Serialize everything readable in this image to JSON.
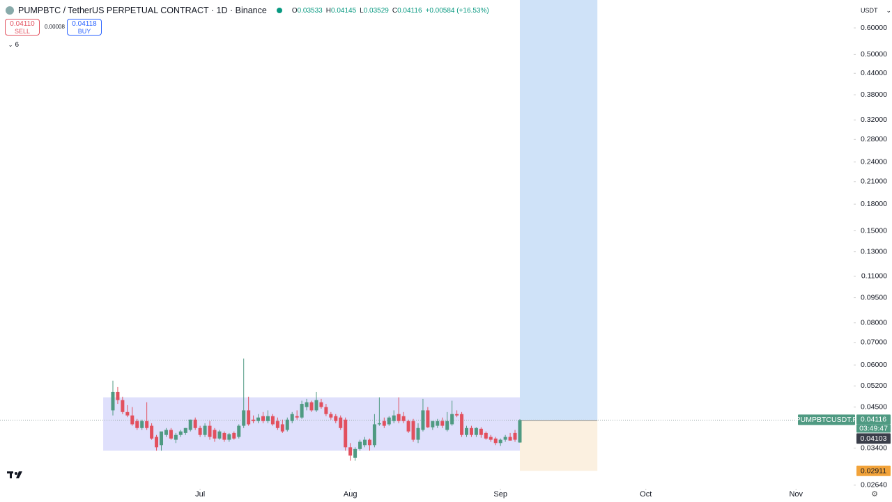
{
  "header": {
    "symbol": "PUMPBTC / TetherUS PERPETUAL CONTRACT · 1D · Binance",
    "ohlc": [
      {
        "key": "O",
        "value": "0.03533"
      },
      {
        "key": "H",
        "value": "0.04145"
      },
      {
        "key": "L",
        "value": "0.03529"
      },
      {
        "key": "C",
        "value": "0.04116"
      }
    ],
    "change": "+0.00584 (+16.53%)"
  },
  "trade": {
    "sell_price": "0.04110",
    "sell": "SELL",
    "spread": "0.00008",
    "buy_price": "0.04118",
    "buy": "BUY"
  },
  "indicators_count": 6,
  "currency": "USDT",
  "price_labels": {
    "symbol": "PUMPBTCUSDT.P",
    "price": "0.04116",
    "countdown": "03:49:47",
    "bid": "0.04103"
  },
  "chart_data": {
    "type": "candlestick",
    "log_scale": true,
    "up_color": "#4f9a82",
    "down_color": "#e2505e",
    "open": [
      0.044,
      0.0499,
      0.0472,
      0.0435,
      0.0425,
      0.0409,
      0.039,
      0.0409,
      0.0396,
      0.0367,
      0.0347,
      0.0372,
      0.0385,
      0.036,
      0.0372,
      0.0377,
      0.0385,
      0.0413,
      0.039,
      0.0372,
      0.0396,
      0.0385,
      0.0363,
      0.0377,
      0.036,
      0.0377,
      0.0367,
      0.0396,
      0.044,
      0.0413,
      0.0409,
      0.0423,
      0.0409,
      0.0423,
      0.0409,
      0.04,
      0.0385,
      0.0409,
      0.0423,
      0.0419,
      0.045,
      0.0465,
      0.044,
      0.0465,
      0.045,
      0.0429,
      0.0423,
      0.0419,
      0.0413,
      0.0342,
      0.0318,
      0.0338,
      0.0347,
      0.036,
      0.0347,
      0.04,
      0.0409,
      0.04,
      0.0409,
      0.0429,
      0.0423,
      0.0409,
      0.0409,
      0.036,
      0.0385,
      0.044,
      0.0392,
      0.0396,
      0.0409,
      0.0385,
      0.04,
      0.0429,
      0.0429,
      0.0372,
      0.039,
      0.0372,
      0.0388,
      0.0377,
      0.0367,
      0.0363,
      0.0352,
      0.036,
      0.0367,
      0.0377,
      0.03533
    ],
    "high": [
      0.0539,
      0.0516,
      0.0483,
      0.0456,
      0.045,
      0.0415,
      0.0413,
      0.0465,
      0.0403,
      0.0372,
      0.0377,
      0.039,
      0.039,
      0.0377,
      0.0385,
      0.039,
      0.0413,
      0.0419,
      0.0396,
      0.0403,
      0.0409,
      0.039,
      0.0385,
      0.0381,
      0.0377,
      0.0381,
      0.04,
      0.0627,
      0.0483,
      0.0425,
      0.0429,
      0.0435,
      0.044,
      0.0429,
      0.0419,
      0.0413,
      0.0419,
      0.0435,
      0.044,
      0.047,
      0.0476,
      0.047,
      0.0499,
      0.0476,
      0.046,
      0.0435,
      0.0429,
      0.0425,
      0.0419,
      0.0352,
      0.0342,
      0.036,
      0.0367,
      0.0363,
      0.0429,
      0.0481,
      0.0419,
      0.0423,
      0.044,
      0.0481,
      0.0435,
      0.0413,
      0.0415,
      0.0403,
      0.0476,
      0.045,
      0.0409,
      0.0415,
      0.0419,
      0.0435,
      0.047,
      0.044,
      0.0435,
      0.0396,
      0.0396,
      0.0392,
      0.0392,
      0.0381,
      0.0372,
      0.0367,
      0.0363,
      0.0372,
      0.0377,
      0.0385,
      0.04145
    ],
    "low": [
      0.0425,
      0.046,
      0.0429,
      0.042,
      0.0396,
      0.0385,
      0.0385,
      0.0385,
      0.036,
      0.0334,
      0.0334,
      0.0367,
      0.036,
      0.0352,
      0.0367,
      0.0372,
      0.0381,
      0.0385,
      0.0367,
      0.0367,
      0.036,
      0.0355,
      0.036,
      0.0355,
      0.0355,
      0.036,
      0.0363,
      0.039,
      0.0396,
      0.0403,
      0.0403,
      0.0403,
      0.0403,
      0.0396,
      0.0385,
      0.0377,
      0.0381,
      0.0403,
      0.0413,
      0.0415,
      0.044,
      0.0435,
      0.0435,
      0.0445,
      0.0423,
      0.0413,
      0.0403,
      0.0385,
      0.0334,
      0.0312,
      0.0312,
      0.0334,
      0.0342,
      0.0334,
      0.0342,
      0.0396,
      0.039,
      0.0396,
      0.0403,
      0.0403,
      0.0403,
      0.0377,
      0.0355,
      0.0352,
      0.0381,
      0.039,
      0.0385,
      0.039,
      0.039,
      0.0381,
      0.0396,
      0.042,
      0.0367,
      0.0367,
      0.0367,
      0.0367,
      0.0365,
      0.036,
      0.0355,
      0.0347,
      0.0345,
      0.0355,
      0.0358,
      0.0355,
      0.03529
    ],
    "close": [
      0.0499,
      0.0472,
      0.0435,
      0.0425,
      0.04,
      0.039,
      0.0409,
      0.039,
      0.0363,
      0.0342,
      0.0381,
      0.0385,
      0.0363,
      0.0372,
      0.0381,
      0.039,
      0.0413,
      0.039,
      0.0372,
      0.0396,
      0.0367,
      0.0363,
      0.0381,
      0.036,
      0.0374,
      0.0363,
      0.0396,
      0.044,
      0.04,
      0.0409,
      0.0419,
      0.0409,
      0.0423,
      0.04,
      0.039,
      0.0381,
      0.0413,
      0.0429,
      0.0419,
      0.046,
      0.0465,
      0.044,
      0.0472,
      0.045,
      0.0429,
      0.0419,
      0.0409,
      0.039,
      0.0342,
      0.0323,
      0.0338,
      0.0355,
      0.036,
      0.0347,
      0.04,
      0.0403,
      0.0396,
      0.0419,
      0.0425,
      0.0409,
      0.0409,
      0.0381,
      0.036,
      0.039,
      0.044,
      0.0392,
      0.0409,
      0.0409,
      0.0396,
      0.0409,
      0.0429,
      0.0425,
      0.0372,
      0.039,
      0.0372,
      0.039,
      0.0372,
      0.0363,
      0.036,
      0.0352,
      0.036,
      0.0367,
      0.0358,
      0.036,
      0.04116
    ],
    "xlim": [
      -23.3,
      152.9
    ],
    "xticks": [
      {
        "value": 18,
        "label": "Jul"
      },
      {
        "value": 49,
        "label": "Aug"
      },
      {
        "value": 80,
        "label": "Sep"
      },
      {
        "value": 110,
        "label": "Oct"
      },
      {
        "value": 141,
        "label": "Nov"
      }
    ],
    "ylim": [
      0.026,
      0.726
    ],
    "yticks": [
      {
        "value": 0.6,
        "label": "0.60000"
      },
      {
        "value": 0.5,
        "label": "0.50000"
      },
      {
        "value": 0.44,
        "label": "0.44000"
      },
      {
        "value": 0.38,
        "label": "0.38000"
      },
      {
        "value": 0.32,
        "label": "0.32000"
      },
      {
        "value": 0.28,
        "label": "0.28000"
      },
      {
        "value": 0.24,
        "label": "0.24000"
      },
      {
        "value": 0.21,
        "label": "0.21000"
      },
      {
        "value": 0.18,
        "label": "0.18000"
      },
      {
        "value": 0.15,
        "label": "0.15000"
      },
      {
        "value": 0.13,
        "label": "0.13000"
      },
      {
        "value": 0.11,
        "label": "0.11000"
      },
      {
        "value": 0.095,
        "label": "0.09500"
      },
      {
        "value": 0.08,
        "label": "0.08000"
      },
      {
        "value": 0.07,
        "label": "0.07000"
      },
      {
        "value": 0.06,
        "label": "0.06000"
      },
      {
        "value": 0.052,
        "label": "0.05200"
      },
      {
        "value": 0.045,
        "label": "0.04500"
      },
      {
        "value": 0.034,
        "label": "0.03400"
      },
      {
        "value": 0.0264,
        "label": "0.02640"
      }
    ],
    "range_box": {
      "start": -2,
      "end": 85,
      "top": 0.0481,
      "bottom": 0.0334,
      "color": "#c9ccfa"
    },
    "position_tool": {
      "start": 84,
      "end": 100,
      "entry": 0.0411,
      "target": 0.8,
      "stop": 0.02911,
      "profit_color": "#cfe2f8",
      "loss_color": "#fbf0e0"
    }
  }
}
